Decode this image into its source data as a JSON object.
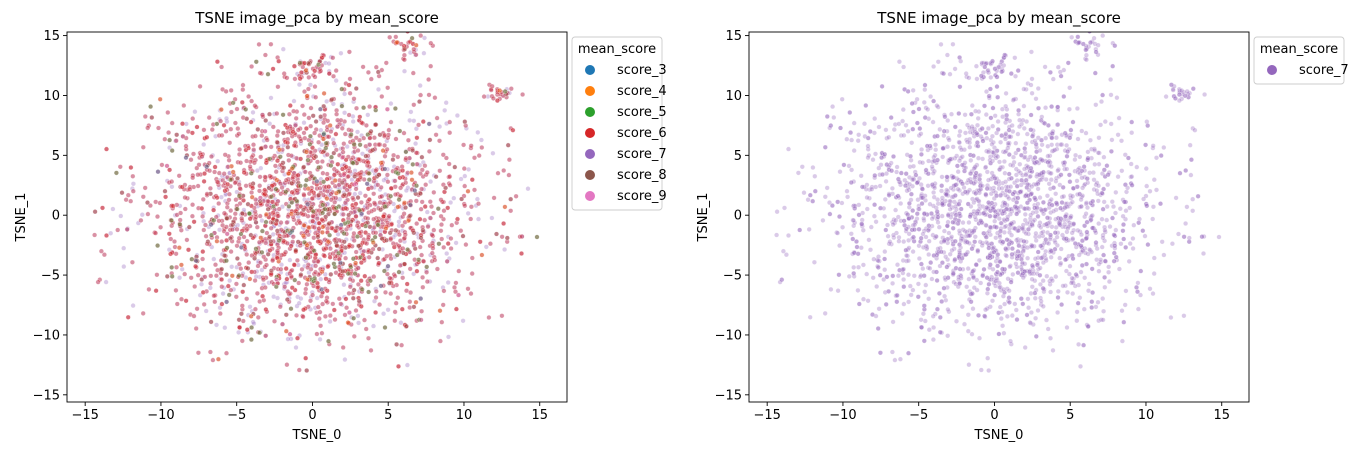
{
  "colors": {
    "score_3": "#1f77b4",
    "score_4": "#ff7f0e",
    "score_5": "#2ca02c",
    "score_6": "#d62728",
    "score_7": "#9467bd",
    "score_8": "#8c564b",
    "score_9": "#e377c2"
  },
  "chart_data": [
    {
      "type": "scatter",
      "title": "TSNE image_pca by mean_score",
      "xlabel": "TSNE_0",
      "ylabel": "TSNE_1",
      "xlim": [
        -16.2,
        16.8
      ],
      "ylim": [
        -15.6,
        15.3
      ],
      "xticks": [
        -15,
        -10,
        -5,
        0,
        5,
        10,
        15
      ],
      "yticks": [
        -15,
        -10,
        -5,
        0,
        5,
        10,
        15
      ],
      "grid": false,
      "legend": {
        "title": "mean_score",
        "placement": "outside upper right",
        "entries": [
          "score_3",
          "score_4",
          "score_5",
          "score_6",
          "score_7",
          "score_8",
          "score_9"
        ]
      },
      "series": [
        {
          "name": "score_3",
          "color": "#1f77b4",
          "approx_points": 25
        },
        {
          "name": "score_4",
          "color": "#ff7f0e",
          "approx_points": 60
        },
        {
          "name": "score_5",
          "color": "#2ca02c",
          "approx_points": 140
        },
        {
          "name": "score_6",
          "color": "#d62728",
          "approx_points": 2300
        },
        {
          "name": "score_7",
          "color": "#9467bd",
          "approx_points": 2600
        },
        {
          "name": "score_8",
          "color": "#8c564b",
          "approx_points": 180
        },
        {
          "name": "score_9",
          "color": "#e377c2",
          "approx_points": 15
        }
      ],
      "distribution": {
        "shape": "dense elliptical cloud centered near (0, 0)",
        "x_range": [
          -15,
          15.5
        ],
        "y_range": [
          -14.5,
          14.5
        ],
        "clusters": [
          {
            "x": 0,
            "y": 12.5
          },
          {
            "x": 12.3,
            "y": 10.2
          },
          {
            "x": 6.5,
            "y": 14.2
          }
        ]
      }
    },
    {
      "type": "scatter",
      "title": "TSNE image_pca by mean_score",
      "xlabel": "TSNE_0",
      "ylabel": "TSNE_1",
      "xlim": [
        -16.2,
        16.8
      ],
      "ylim": [
        -15.6,
        15.3
      ],
      "xticks": [
        -15,
        -10,
        -5,
        0,
        5,
        10,
        15
      ],
      "yticks": [
        -15,
        -10,
        -5,
        0,
        5,
        10,
        15
      ],
      "grid": false,
      "legend": {
        "title": "mean_score",
        "placement": "outside upper right",
        "entries": [
          "score_7"
        ]
      },
      "series": [
        {
          "name": "score_7",
          "color": "#9467bd",
          "approx_points": 2600
        }
      ],
      "distribution": {
        "shape": "dense elliptical cloud centered near (0, 0)",
        "x_range": [
          -15,
          15.5
        ],
        "y_range": [
          -14.5,
          14.5
        ],
        "clusters": [
          {
            "x": 0,
            "y": 12.5
          },
          {
            "x": 12.3,
            "y": 10.2
          },
          {
            "x": 6.5,
            "y": 14.2
          }
        ]
      }
    }
  ]
}
